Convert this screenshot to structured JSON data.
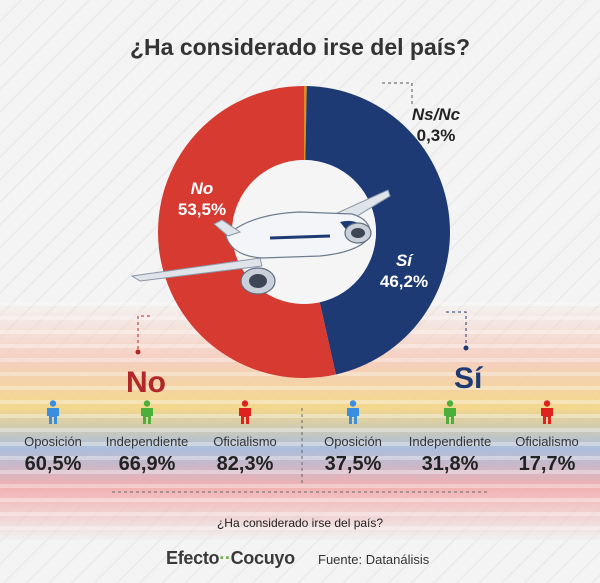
{
  "chart_data": {
    "type": "pie",
    "title": "¿Ha considerado irse del país?",
    "slices": [
      {
        "label": "Ns/Nc",
        "value": 0.3,
        "value_label": "0,3%",
        "color": "#e08a1e"
      },
      {
        "label": "Sí",
        "value": 46.2,
        "value_label": "46,2%",
        "color": "#1e3a75"
      },
      {
        "label": "No",
        "value": 53.5,
        "value_label": "53,5%",
        "color": "#d63a30"
      }
    ],
    "donut": true
  },
  "breakdown": {
    "no": {
      "heading": "No",
      "color": "#b3262a",
      "items": [
        {
          "category": "Oposición",
          "value": "60,5%",
          "color": "#3b8de0"
        },
        {
          "category": "Independiente",
          "value": "66,9%",
          "color": "#4caf3a"
        },
        {
          "category": "Oficialismo",
          "value": "82,3%",
          "color": "#e0221e"
        }
      ]
    },
    "si": {
      "heading": "Sí",
      "color": "#1e3a75",
      "items": [
        {
          "category": "Oposición",
          "value": "37,5%",
          "color": "#3b8de0"
        },
        {
          "category": "Independiente",
          "value": "31,8%",
          "color": "#4caf3a"
        },
        {
          "category": "Oficialismo",
          "value": "17,7%",
          "color": "#e0221e"
        }
      ]
    }
  },
  "footer": {
    "question": "¿Ha considerado irse del país?",
    "brand_left": "Efecto",
    "brand_dots": "··",
    "brand_right": "Cocuyo",
    "source": "Fuente: Datanálisis"
  },
  "icons": {
    "center": "airplane-icon",
    "person": "person-icon"
  }
}
